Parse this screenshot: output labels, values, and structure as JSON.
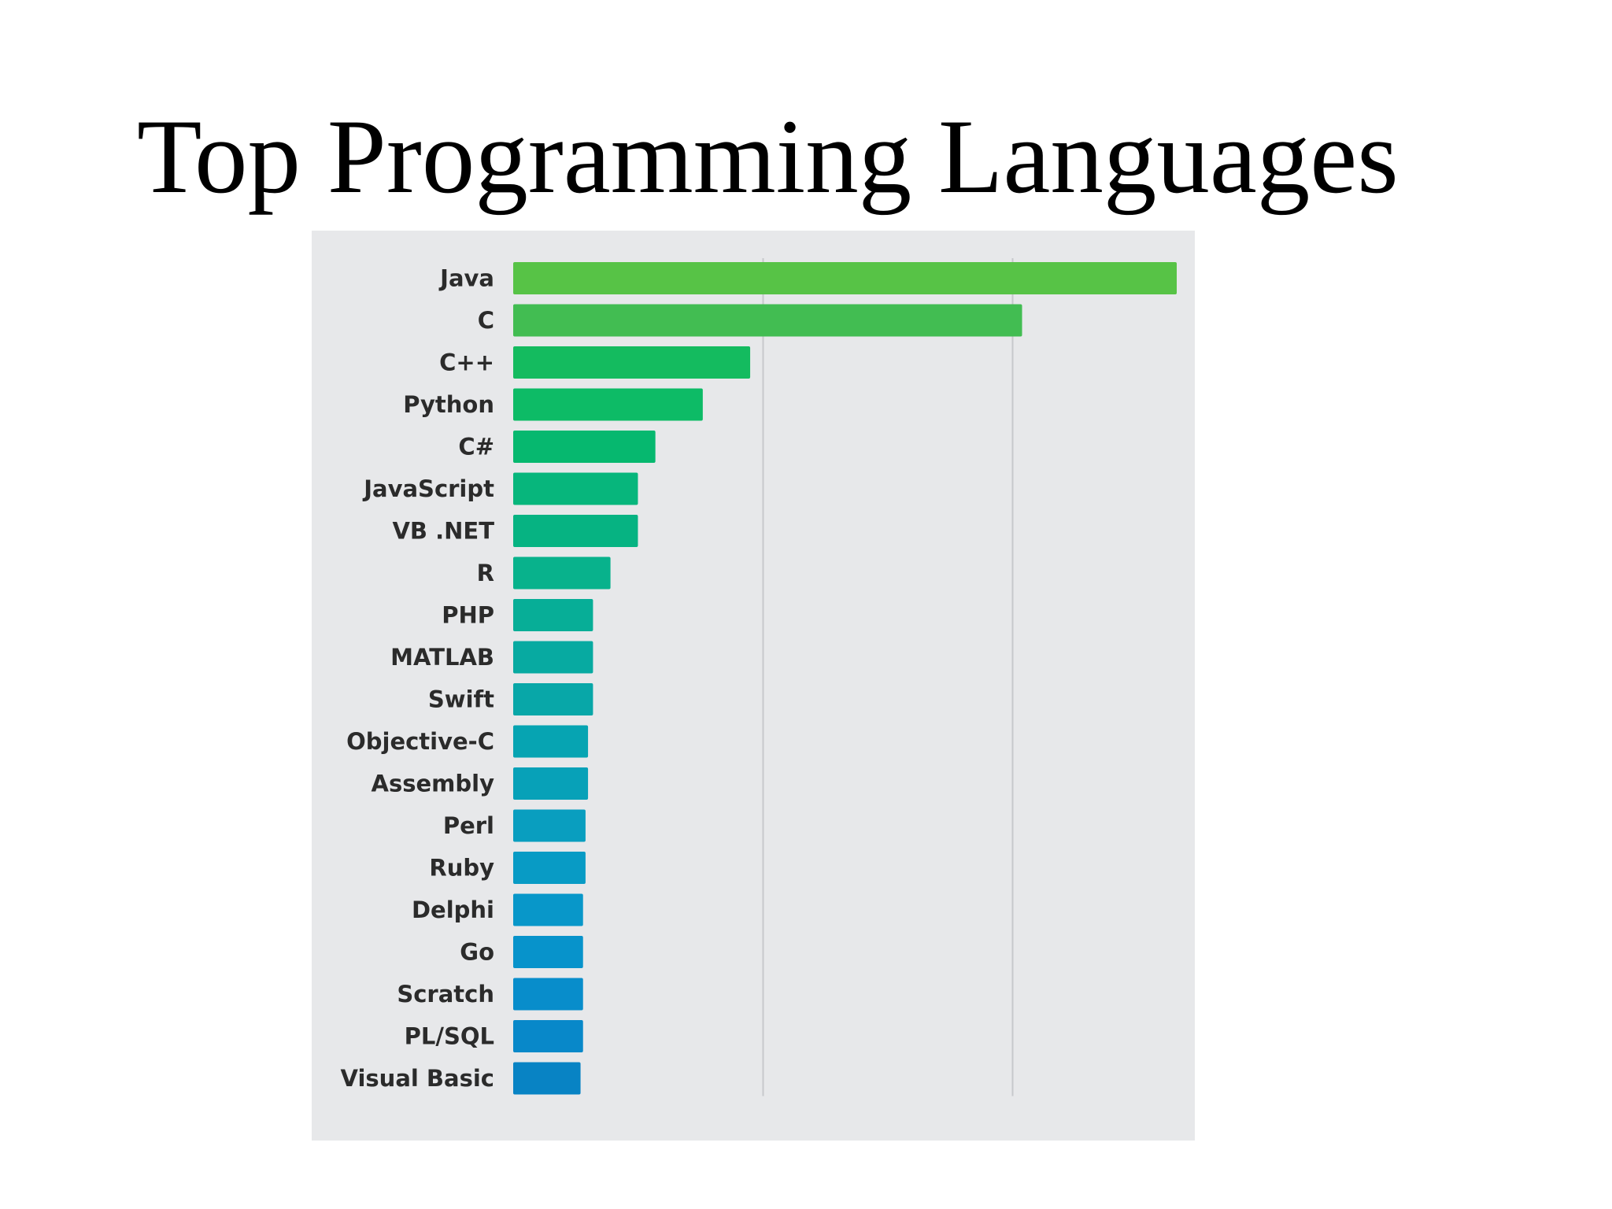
{
  "slide": {
    "title": "Top Programming Languages"
  },
  "chart_data": {
    "type": "bar",
    "orientation": "horizontal",
    "title": "",
    "xlabel": "",
    "ylabel": "",
    "categories": [
      "Java",
      "C",
      "C++",
      "Python",
      "C#",
      "JavaScript",
      "VB .NET",
      "R",
      "PHP",
      "MATLAB",
      "Swift",
      "Objective-C",
      "Assembly",
      "Perl",
      "Ruby",
      "Delphi",
      "Go",
      "Scratch",
      "PL/SQL",
      "Visual Basic"
    ],
    "values": [
      2.66,
      2.04,
      0.95,
      0.76,
      0.57,
      0.5,
      0.5,
      0.39,
      0.32,
      0.32,
      0.32,
      0.3,
      0.3,
      0.29,
      0.29,
      0.28,
      0.28,
      0.28,
      0.28,
      0.27
    ],
    "xlim": [
      0,
      2.66
    ],
    "gridlines_x": [
      1,
      2
    ],
    "grid": true,
    "tick_labels_shown": false,
    "colors": [
      "#57c346",
      "#42bd52",
      "#14bb5f",
      "#0dbb66",
      "#06b86f",
      "#07b67c",
      "#06b382",
      "#08b28c",
      "#07ae97",
      "#07aaa1",
      "#08a7a8",
      "#06a4b2",
      "#07a1b8",
      "#099ebf",
      "#089bc5",
      "#0897c9",
      "#0793cb",
      "#088dcb",
      "#0888c9",
      "#0883c4"
    ],
    "gridline_color": "#c7c9cc",
    "background": "#e7e8ea"
  }
}
